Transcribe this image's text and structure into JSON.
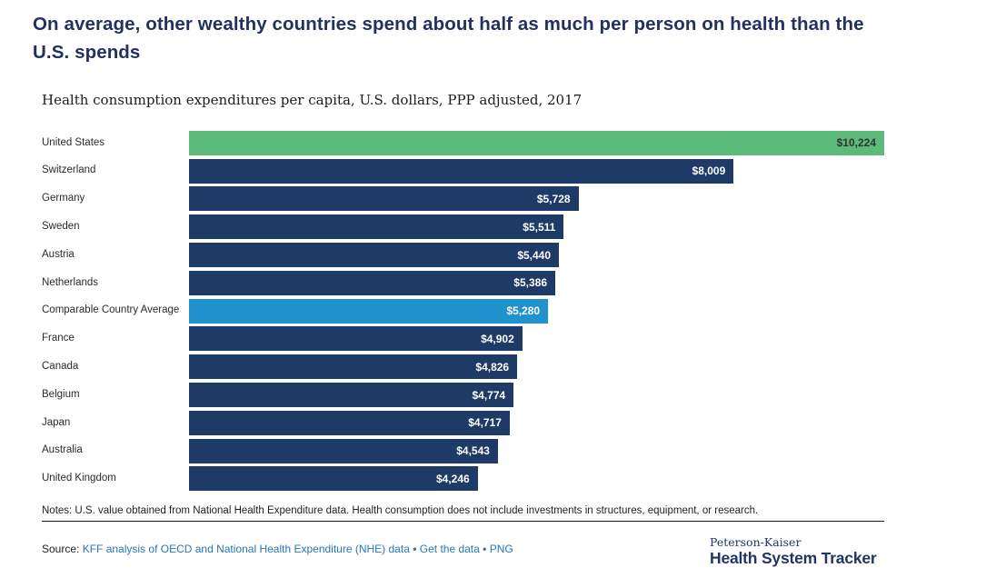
{
  "header": {
    "title": "On average, other wealthy countries spend about half as much per person on health than the U.S. spends"
  },
  "chart_data": {
    "type": "bar",
    "orientation": "horizontal",
    "title": "Health consumption expenditures per capita, U.S. dollars, PPP adjusted, 2017",
    "xlim": [
      0,
      10224
    ],
    "grid": false,
    "legend": "none",
    "value_label_position": "inside-end",
    "categories": [
      "United States",
      "Switzerland",
      "Germany",
      "Sweden",
      "Austria",
      "Netherlands",
      "Comparable Country Average",
      "France",
      "Canada",
      "Belgium",
      "Japan",
      "Australia",
      "United Kingdom"
    ],
    "values": [
      10224,
      8009,
      5728,
      5511,
      5440,
      5386,
      5280,
      4902,
      4826,
      4774,
      4717,
      4543,
      4246
    ],
    "value_labels": [
      "$10,224",
      "$8,009",
      "$5,728",
      "$5,511",
      "$5,440",
      "$5,386",
      "$5,280",
      "$4,902",
      "$4,826",
      "$4,774",
      "$4,717",
      "$4,543",
      "$4,246"
    ],
    "bar_styles": [
      "green",
      "navy",
      "navy",
      "navy",
      "navy",
      "navy",
      "blue",
      "navy",
      "navy",
      "navy",
      "navy",
      "navy",
      "navy"
    ]
  },
  "footer": {
    "notes": "Notes: U.S. value obtained from National Health Expenditure data. Health consumption does not include investments in structures, equipment, or research.",
    "source_prefix": "Source: ",
    "source_link": "KFF analysis of OECD and National Health Expenditure (NHE) data",
    "bullet": "•",
    "get_data_link": "Get the data",
    "png_link": "PNG"
  },
  "logo": {
    "top": "Peterson-Kaiser",
    "bottom": "Health System Tracker"
  },
  "colors": {
    "navy_bar": "#1E3A66",
    "green_bar": "#5CBA7A",
    "blue_bar": "#2093CE",
    "title_text": "#22325F",
    "link_blue": "#2A76B5",
    "bar_value_light": "#FFFFFF",
    "bar_value_dark": "#333333"
  }
}
